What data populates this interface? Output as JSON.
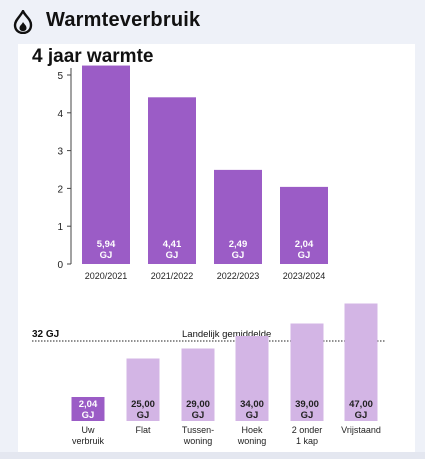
{
  "app": {
    "title": "Warmteverbruik",
    "icon": "flame-icon"
  },
  "colors": {
    "accent": "#9b5cc6",
    "light": "#d3b5e5",
    "bg": "#eef1f8"
  },
  "chart_data": [
    {
      "type": "bar",
      "title": "4 jaar warmte",
      "categories": [
        "2020/2021",
        "2021/2022",
        "2022/2023",
        "2023/2024"
      ],
      "values": [
        5.94,
        4.41,
        2.49,
        2.04
      ],
      "value_labels": [
        "5,94",
        "4,41",
        "2,49",
        "2,04"
      ],
      "unit": "GJ",
      "ylim": [
        0,
        5
      ],
      "yticks": [
        0,
        1,
        2,
        3,
        4,
        5
      ],
      "grid": false
    },
    {
      "type": "bar",
      "categories": [
        "Uw verbruik",
        "Flat",
        "Tussen-woning",
        "Hoek woning",
        "2 onder 1 kap",
        "Vrijstaand"
      ],
      "category_lines": [
        [
          "Uw",
          "verbruik"
        ],
        [
          "Flat"
        ],
        [
          "Tussen-",
          "woning"
        ],
        [
          "Hoek",
          "woning"
        ],
        [
          "2 onder",
          "1 kap"
        ],
        [
          "Vrijstaand"
        ]
      ],
      "values": [
        2.04,
        25.0,
        29.0,
        34.0,
        39.0,
        47.0
      ],
      "value_labels": [
        "2,04",
        "25,00",
        "29,00",
        "34,00",
        "39,00",
        "47,00"
      ],
      "unit": "GJ",
      "highlight_index": 0,
      "reference_line": {
        "value": 32,
        "value_label": "32 GJ",
        "label": "Landelijk gemiddelde"
      }
    }
  ]
}
